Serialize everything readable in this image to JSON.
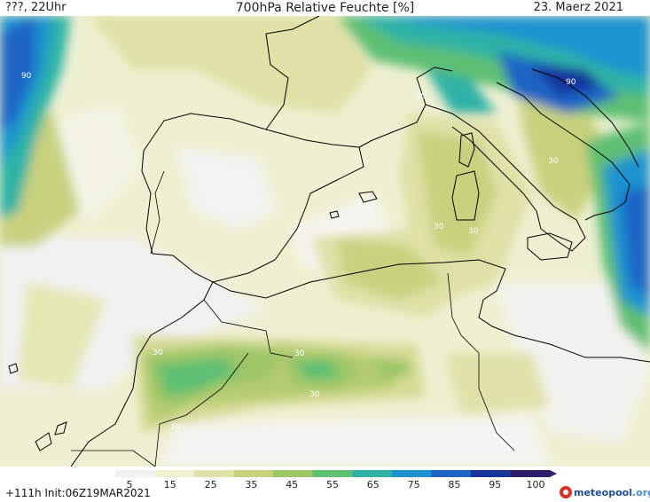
{
  "header": {
    "left": "???, 22Uhr",
    "title": "700hPa Relative Feuchte [%]",
    "date": "23. Maerz 2021"
  },
  "map": {
    "contour_labels": [
      "90",
      "90",
      "30",
      "30",
      "30",
      "30",
      "30",
      "30",
      "30",
      "30"
    ]
  },
  "legend": {
    "ticks": [
      "5",
      "15",
      "25",
      "35",
      "45",
      "55",
      "65",
      "75",
      "85",
      "95",
      "100"
    ],
    "colors": [
      "#f1f1f1",
      "#eef0d2",
      "#dfe1a6",
      "#c7d17e",
      "#9dc668",
      "#5fc073",
      "#2fb2a6",
      "#1e93d0",
      "#1c65c4",
      "#17349b",
      "#2c1e6b",
      "#3a1e6e"
    ]
  },
  "footer": {
    "run": "+111h  Init:06Z19MAR2021",
    "brand_part1": "meteo",
    "brand_part2": "pool",
    "brand_part3": ".org"
  }
}
